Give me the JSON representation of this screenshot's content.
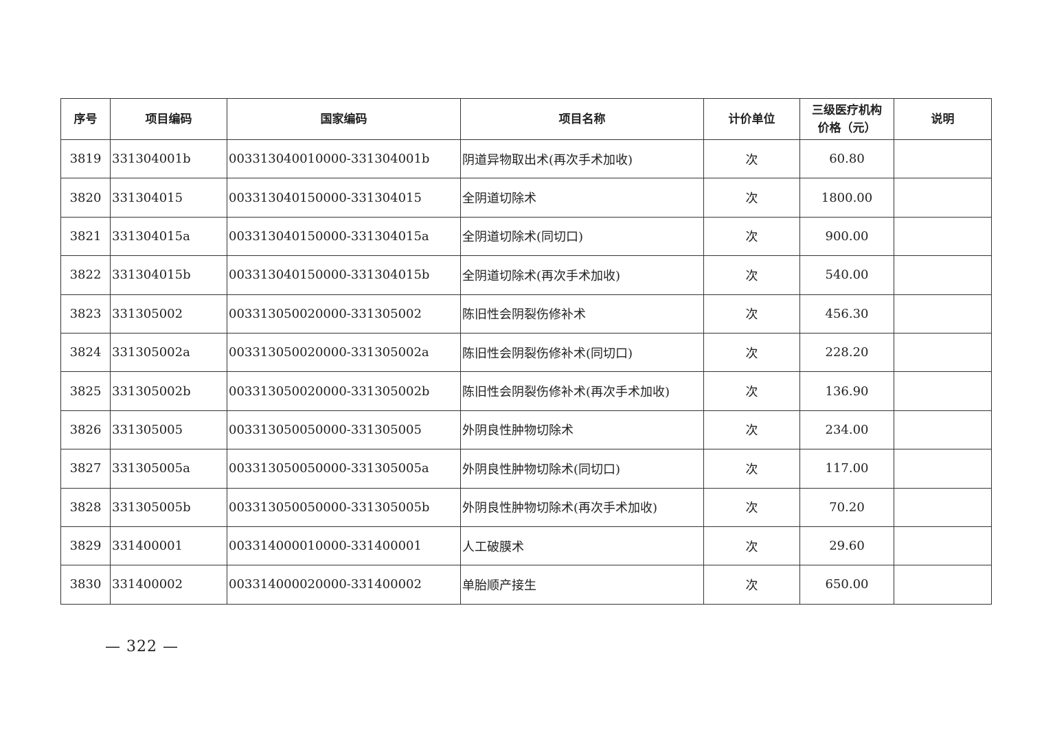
{
  "table": {
    "headers": [
      "序号",
      "项目编码",
      "国家编码",
      "项目名称",
      "计价单位",
      "三级医疗机构价格（元）",
      "说明"
    ],
    "header_price_line1": "三级医疗机构",
    "header_price_line2": "价格（元）",
    "rows": [
      {
        "no": "3819",
        "code": "331304001b",
        "national_code": "003313040010000-331304001b",
        "name": "阴道异物取出术(再次手术加收)",
        "unit": "次",
        "price": "60.80",
        "note": ""
      },
      {
        "no": "3820",
        "code": "331304015",
        "national_code": "003313040150000-331304015",
        "name": "全阴道切除术",
        "unit": "次",
        "price": "1800.00",
        "note": ""
      },
      {
        "no": "3821",
        "code": "331304015a",
        "national_code": "003313040150000-331304015a",
        "name": "全阴道切除术(同切口)",
        "unit": "次",
        "price": "900.00",
        "note": ""
      },
      {
        "no": "3822",
        "code": "331304015b",
        "national_code": "003313040150000-331304015b",
        "name": "全阴道切除术(再次手术加收)",
        "unit": "次",
        "price": "540.00",
        "note": ""
      },
      {
        "no": "3823",
        "code": "331305002",
        "national_code": "003313050020000-331305002",
        "name": "陈旧性会阴裂伤修补术",
        "unit": "次",
        "price": "456.30",
        "note": ""
      },
      {
        "no": "3824",
        "code": "331305002a",
        "national_code": "003313050020000-331305002a",
        "name": "陈旧性会阴裂伤修补术(同切口)",
        "unit": "次",
        "price": "228.20",
        "note": ""
      },
      {
        "no": "3825",
        "code": "331305002b",
        "national_code": "003313050020000-331305002b",
        "name": "陈旧性会阴裂伤修补术(再次手术加收)",
        "unit": "次",
        "price": "136.90",
        "note": ""
      },
      {
        "no": "3826",
        "code": "331305005",
        "national_code": "003313050050000-331305005",
        "name": "外阴良性肿物切除术",
        "unit": "次",
        "price": "234.00",
        "note": ""
      },
      {
        "no": "3827",
        "code": "331305005a",
        "national_code": "003313050050000-331305005a",
        "name": "外阴良性肿物切除术(同切口)",
        "unit": "次",
        "price": "117.00",
        "note": ""
      },
      {
        "no": "3828",
        "code": "331305005b",
        "national_code": "003313050050000-331305005b",
        "name": "外阴良性肿物切除术(再次手术加收)",
        "unit": "次",
        "price": "70.20",
        "note": ""
      },
      {
        "no": "3829",
        "code": "331400001",
        "national_code": "003314000010000-331400001",
        "name": "人工破膜术",
        "unit": "次",
        "price": "29.60",
        "note": ""
      },
      {
        "no": "3830",
        "code": "331400002",
        "national_code": "003314000020000-331400002",
        "name": "单胎顺产接生",
        "unit": "次",
        "price": "650.00",
        "note": ""
      }
    ]
  },
  "page_number": "— 322 —"
}
